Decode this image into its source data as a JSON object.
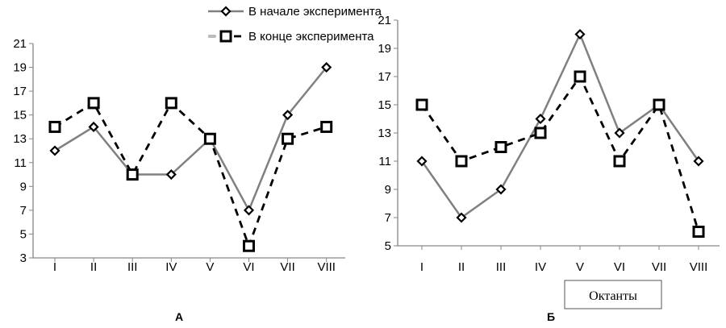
{
  "legend": [
    {
      "name": "В начале эксперимента",
      "color": "#808080",
      "marker": "diamond",
      "dash": "solid"
    },
    {
      "name": "В конце эксперимента",
      "color": "#000000",
      "marker": "square",
      "dash": "dashed"
    }
  ],
  "chart_data": [
    {
      "type": "line",
      "panel_label": "А",
      "categories": [
        "I",
        "II",
        "III",
        "IV",
        "V",
        "VI",
        "VII",
        "VIII"
      ],
      "ylim": [
        3,
        21
      ],
      "yticks": [
        3,
        5,
        7,
        9,
        11,
        13,
        15,
        17,
        19,
        21
      ],
      "xlabel": "",
      "grid": false,
      "series": [
        {
          "name": "В начале эксперимента",
          "values": [
            12,
            14,
            10,
            10,
            13,
            7,
            15,
            19
          ]
        },
        {
          "name": "В конце эксперимента",
          "values": [
            14,
            16,
            10,
            16,
            13,
            4,
            13,
            14
          ]
        }
      ]
    },
    {
      "type": "line",
      "panel_label": "Б",
      "categories": [
        "I",
        "II",
        "III",
        "IV",
        "V",
        "VI",
        "VII",
        "VIII"
      ],
      "ylim": [
        5,
        21
      ],
      "yticks": [
        5,
        7,
        9,
        11,
        13,
        15,
        17,
        19,
        21
      ],
      "xlabel": "Октанты",
      "grid": false,
      "series": [
        {
          "name": "В начале эксперимента",
          "values": [
            11,
            7,
            9,
            14,
            20,
            13,
            15,
            11
          ]
        },
        {
          "name": "В конце эксперимента",
          "values": [
            15,
            11,
            12,
            13,
            17,
            11,
            15,
            6
          ]
        }
      ]
    }
  ]
}
